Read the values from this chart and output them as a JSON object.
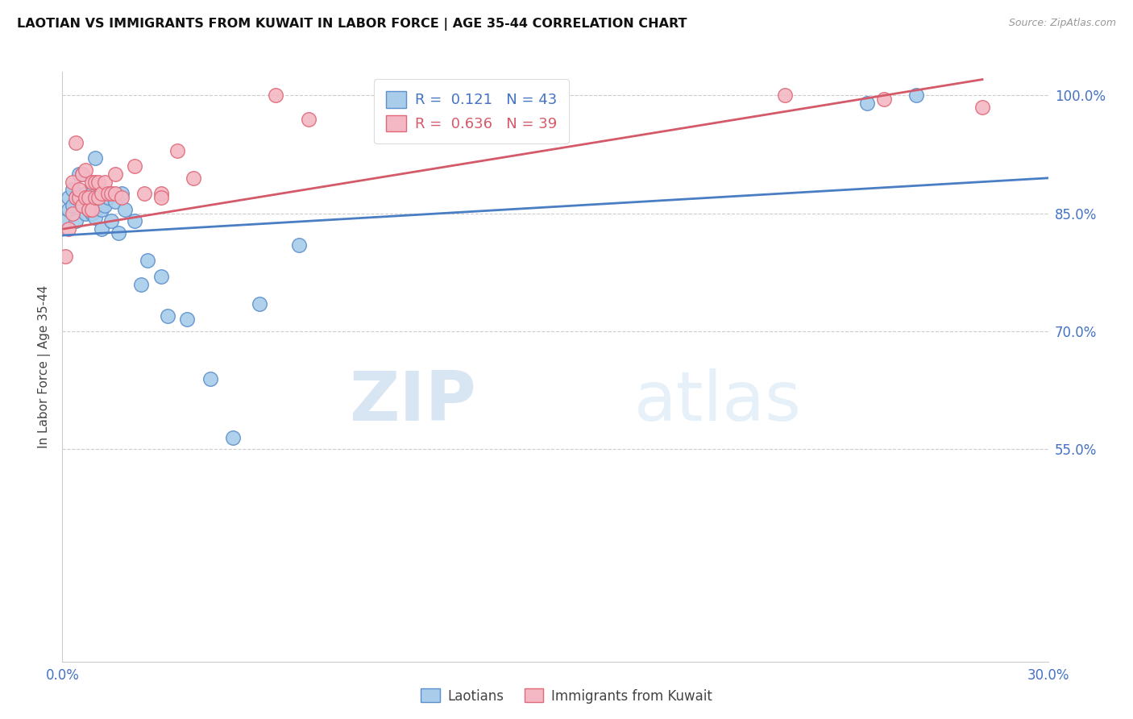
{
  "title": "LAOTIAN VS IMMIGRANTS FROM KUWAIT IN LABOR FORCE | AGE 35-44 CORRELATION CHART",
  "source": "Source: ZipAtlas.com",
  "ylabel": "In Labor Force | Age 35-44",
  "blue_R": 0.121,
  "blue_N": 43,
  "pink_R": 0.636,
  "pink_N": 39,
  "blue_color": "#A8CCEA",
  "pink_color": "#F4B8C4",
  "blue_edge_color": "#5B8FCC",
  "pink_edge_color": "#E06878",
  "blue_line_color": "#4A7EC4",
  "pink_line_color": "#D45A6A",
  "legend_label_blue": "Laotians",
  "legend_label_pink": "Immigrants from Kuwait",
  "watermark_zip": "ZIP",
  "watermark_atlas": "atlas",
  "xlim": [
    0.0,
    0.3
  ],
  "ylim": [
    0.28,
    1.03
  ],
  "ytick_values": [
    1.0,
    0.85,
    0.7,
    0.55
  ],
  "xtick_show": [
    0.0,
    0.3
  ],
  "blue_scatter_x": [
    0.001,
    0.002,
    0.002,
    0.003,
    0.003,
    0.004,
    0.004,
    0.005,
    0.005,
    0.006,
    0.006,
    0.006,
    0.007,
    0.007,
    0.008,
    0.008,
    0.009,
    0.009,
    0.01,
    0.01,
    0.011,
    0.012,
    0.012,
    0.013,
    0.014,
    0.015,
    0.016,
    0.017,
    0.018,
    0.019,
    0.022,
    0.024,
    0.026,
    0.03,
    0.032,
    0.038,
    0.045,
    0.052,
    0.06,
    0.072,
    0.13,
    0.245,
    0.26
  ],
  "blue_scatter_y": [
    0.84,
    0.87,
    0.855,
    0.86,
    0.88,
    0.84,
    0.87,
    0.87,
    0.9,
    0.86,
    0.87,
    0.9,
    0.85,
    0.875,
    0.855,
    0.87,
    0.85,
    0.875,
    0.845,
    0.92,
    0.87,
    0.83,
    0.855,
    0.86,
    0.87,
    0.84,
    0.865,
    0.825,
    0.875,
    0.855,
    0.84,
    0.76,
    0.79,
    0.77,
    0.72,
    0.715,
    0.64,
    0.565,
    0.735,
    0.81,
    1.0,
    0.99,
    1.0
  ],
  "pink_scatter_x": [
    0.001,
    0.002,
    0.003,
    0.003,
    0.004,
    0.004,
    0.005,
    0.005,
    0.006,
    0.006,
    0.007,
    0.007,
    0.008,
    0.008,
    0.009,
    0.009,
    0.01,
    0.01,
    0.011,
    0.011,
    0.012,
    0.013,
    0.014,
    0.015,
    0.016,
    0.016,
    0.018,
    0.022,
    0.025,
    0.03,
    0.035,
    0.04,
    0.065,
    0.075,
    0.1,
    0.22,
    0.25,
    0.28,
    0.03
  ],
  "pink_scatter_y": [
    0.795,
    0.83,
    0.85,
    0.89,
    0.87,
    0.94,
    0.87,
    0.88,
    0.86,
    0.9,
    0.87,
    0.905,
    0.855,
    0.87,
    0.855,
    0.89,
    0.87,
    0.89,
    0.87,
    0.89,
    0.875,
    0.89,
    0.875,
    0.875,
    0.875,
    0.9,
    0.87,
    0.91,
    0.875,
    0.875,
    0.93,
    0.895,
    1.0,
    0.97,
    0.96,
    1.0,
    0.995,
    0.985,
    0.87
  ]
}
